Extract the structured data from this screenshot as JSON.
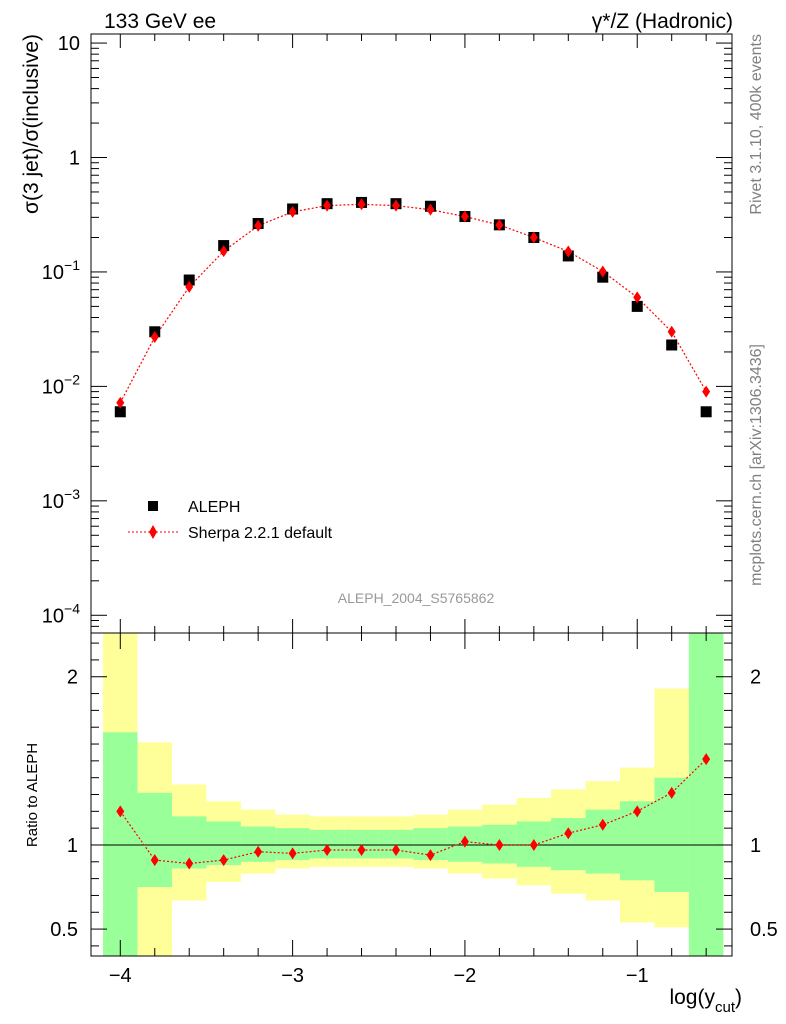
{
  "header": {
    "left": "133 GeV ee",
    "right": "γ*/Z (Hadronic)"
  },
  "side_labels": {
    "rivet": "Rivet 3.1.10,  400k events",
    "mcplots": "mcplots.cern.ch [arXiv:1306.3436]"
  },
  "analysis_id": "ALEPH_2004_S5765862",
  "colors": {
    "data_marker": "#000000",
    "mc_line": "#ff0000",
    "band_inner": "#99ff99",
    "band_outer": "#ffff99"
  },
  "chart_data": [
    {
      "type": "scatter",
      "log_y": true,
      "ylabel": "σ(3 jet)/σ(inclusive)",
      "xlim": [
        -4.17,
        -0.45
      ],
      "ylim": [
        7e-05,
        12
      ],
      "x_ticks": [
        -4,
        -3,
        -2,
        -1
      ],
      "y_ticks": [
        {
          "value": 0.0001,
          "base": "10",
          "exp": "−4"
        },
        {
          "value": 0.001,
          "base": "10",
          "exp": "−3"
        },
        {
          "value": 0.01,
          "base": "10",
          "exp": "−2"
        },
        {
          "value": 0.1,
          "base": "10",
          "exp": "−1"
        },
        {
          "value": 1,
          "base": "1",
          "exp": ""
        },
        {
          "value": 10,
          "base": "10",
          "exp": ""
        }
      ],
      "legend_position": "bottom-left",
      "x": [
        -4.0,
        -3.8,
        -3.6,
        -3.4,
        -3.2,
        -3.0,
        -2.8,
        -2.6,
        -2.4,
        -2.2,
        -2.0,
        -1.8,
        -1.6,
        -1.4,
        -1.2,
        -1.0,
        -0.8,
        -0.6
      ],
      "series": [
        {
          "name": "ALEPH",
          "marker": "square",
          "values": [
            0.006,
            0.03,
            0.085,
            0.17,
            0.265,
            0.355,
            0.395,
            0.405,
            0.395,
            0.375,
            0.305,
            0.258,
            0.2,
            0.138,
            0.09,
            0.05,
            0.023,
            0.006
          ]
        },
        {
          "name": "Sherpa 2.2.1 default",
          "marker": "diamond",
          "line": "dotted",
          "values": [
            0.0072,
            0.027,
            0.074,
            0.152,
            0.253,
            0.335,
            0.38,
            0.39,
            0.38,
            0.35,
            0.305,
            0.257,
            0.2,
            0.151,
            0.101,
            0.06,
            0.03,
            0.009
          ]
        }
      ]
    },
    {
      "type": "line",
      "ylabel": "Ratio to ALEPH",
      "xlabel": "log(y",
      "xlabel_sub": "cut",
      "xlabel_close": ")",
      "xlim": [
        -4.17,
        -0.45
      ],
      "ylim": [
        0.34,
        2.26
      ],
      "x_ticks": [
        -4,
        -3,
        -2,
        -1
      ],
      "y_ticks": [
        0.5,
        1,
        2
      ],
      "reference_line": 1,
      "x": [
        -4.0,
        -3.8,
        -3.6,
        -3.4,
        -3.2,
        -3.0,
        -2.8,
        -2.6,
        -2.4,
        -2.2,
        -2.0,
        -1.8,
        -1.6,
        -1.4,
        -1.2,
        -1.0,
        -0.8,
        -0.6
      ],
      "bin_edges": [
        -4.1,
        -3.9,
        -3.7,
        -3.5,
        -3.3,
        -3.1,
        -2.9,
        -2.7,
        -2.5,
        -2.3,
        -2.1,
        -1.9,
        -1.7,
        -1.5,
        -1.3,
        -1.1,
        -0.9,
        -0.7,
        -0.5
      ],
      "series": [
        {
          "name": "Sherpa 2.2.1 default",
          "values": [
            1.2,
            0.91,
            0.89,
            0.91,
            0.96,
            0.95,
            0.97,
            0.97,
            0.97,
            0.94,
            1.02,
            1.0,
            1.0,
            1.07,
            1.12,
            1.2,
            1.31,
            1.51
          ]
        }
      ],
      "bands": {
        "inner_low": [
          0.33,
          0.75,
          0.86,
          0.88,
          0.9,
          0.91,
          0.92,
          0.92,
          0.92,
          0.91,
          0.9,
          0.89,
          0.87,
          0.85,
          0.83,
          0.79,
          0.72,
          0.33
        ],
        "inner_high": [
          1.67,
          1.31,
          1.17,
          1.14,
          1.11,
          1.1,
          1.09,
          1.09,
          1.09,
          1.1,
          1.11,
          1.12,
          1.14,
          1.16,
          1.21,
          1.26,
          1.4,
          2.3
        ],
        "outer_low": [
          0.33,
          0.33,
          0.67,
          0.78,
          0.83,
          0.86,
          0.87,
          0.87,
          0.87,
          0.86,
          0.83,
          0.8,
          0.76,
          0.71,
          0.67,
          0.54,
          0.51,
          0.33
        ],
        "outer_high": [
          2.3,
          1.61,
          1.36,
          1.26,
          1.21,
          1.18,
          1.17,
          1.17,
          1.17,
          1.18,
          1.21,
          1.24,
          1.28,
          1.33,
          1.38,
          1.46,
          1.93,
          2.3
        ]
      }
    }
  ]
}
